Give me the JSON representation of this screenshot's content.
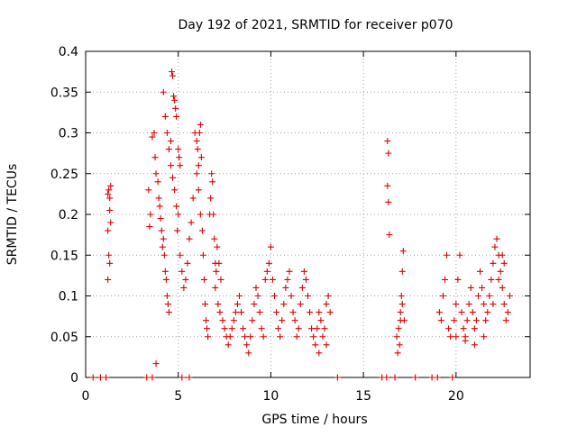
{
  "chart_data": {
    "type": "scatter",
    "title": "Day 192 of 2021, SRMTID for receiver p070",
    "xlabel": "GPS time / hours",
    "ylabel": "SRMTID / TECUs",
    "xlim": [
      0,
      24
    ],
    "ylim": [
      0,
      0.4
    ],
    "xticks": [
      0,
      5,
      10,
      15,
      20
    ],
    "xtick_labels": [
      "0",
      "5",
      "10",
      "15",
      "20"
    ],
    "yticks": [
      0,
      0.05,
      0.1,
      0.15,
      0.2,
      0.25,
      0.3,
      0.35,
      0.4
    ],
    "ytick_labels": [
      "0",
      "0.05",
      "0.1",
      "0.15",
      "0.2",
      "0.25",
      "0.3",
      "0.35",
      "0.4"
    ],
    "grid": true,
    "marker": "+",
    "color": "#dd0000",
    "series": [
      {
        "name": "SRMTID",
        "points": [
          [
            0.4,
            0
          ],
          [
            0.8,
            0
          ],
          [
            1.1,
            0
          ],
          [
            1.2,
            0.225
          ],
          [
            1.25,
            0.23
          ],
          [
            1.3,
            0.22
          ],
          [
            1.35,
            0.235
          ],
          [
            1.2,
            0.18
          ],
          [
            1.25,
            0.15
          ],
          [
            1.3,
            0.14
          ],
          [
            1.2,
            0.12
          ],
          [
            1.35,
            0.19
          ],
          [
            1.3,
            0.205
          ],
          [
            3.3,
            0
          ],
          [
            3.6,
            0
          ],
          [
            3.8,
            0.017
          ],
          [
            3.4,
            0.23
          ],
          [
            3.5,
            0.2
          ],
          [
            3.45,
            0.185
          ],
          [
            3.6,
            0.295
          ],
          [
            3.7,
            0.3
          ],
          [
            3.75,
            0.27
          ],
          [
            3.8,
            0.25
          ],
          [
            3.9,
            0.24
          ],
          [
            3.95,
            0.22
          ],
          [
            4.0,
            0.21
          ],
          [
            4.05,
            0.195
          ],
          [
            4.1,
            0.18
          ],
          [
            4.15,
            0.16
          ],
          [
            4.2,
            0.17
          ],
          [
            4.25,
            0.15
          ],
          [
            4.3,
            0.13
          ],
          [
            4.35,
            0.12
          ],
          [
            4.4,
            0.1
          ],
          [
            4.45,
            0.09
          ],
          [
            4.5,
            0.08
          ],
          [
            4.2,
            0.35
          ],
          [
            4.3,
            0.32
          ],
          [
            4.4,
            0.3
          ],
          [
            4.5,
            0.28
          ],
          [
            4.6,
            0.26
          ],
          [
            4.65,
            0.375
          ],
          [
            4.7,
            0.37
          ],
          [
            4.75,
            0.345
          ],
          [
            4.8,
            0.34
          ],
          [
            4.85,
            0.33
          ],
          [
            4.9,
            0.32
          ],
          [
            4.6,
            0.29
          ],
          [
            4.7,
            0.245
          ],
          [
            4.8,
            0.23
          ],
          [
            4.9,
            0.21
          ],
          [
            5.0,
            0.2
          ],
          [
            5.0,
            0.28
          ],
          [
            5.05,
            0.27
          ],
          [
            5.1,
            0.26
          ],
          [
            4.95,
            0.18
          ],
          [
            5.1,
            0.15
          ],
          [
            5.2,
            0.13
          ],
          [
            5.2,
            0
          ],
          [
            5.3,
            0.11
          ],
          [
            5.4,
            0.12
          ],
          [
            5.5,
            0.14
          ],
          [
            5.6,
            0.17
          ],
          [
            5.7,
            0.19
          ],
          [
            5.8,
            0.22
          ],
          [
            5.6,
            0
          ],
          [
            5.9,
            0.3
          ],
          [
            6.0,
            0.29
          ],
          [
            6.05,
            0.28
          ],
          [
            6.1,
            0.26
          ],
          [
            6.15,
            0.3
          ],
          [
            6.2,
            0.31
          ],
          [
            6.25,
            0.27
          ],
          [
            6.0,
            0.25
          ],
          [
            6.1,
            0.23
          ],
          [
            6.2,
            0.2
          ],
          [
            6.3,
            0.18
          ],
          [
            6.35,
            0.15
          ],
          [
            6.4,
            0.12
          ],
          [
            6.45,
            0.09
          ],
          [
            6.5,
            0.07
          ],
          [
            6.55,
            0.06
          ],
          [
            6.6,
            0.05
          ],
          [
            6.7,
            0.2
          ],
          [
            6.75,
            0.22
          ],
          [
            6.8,
            0.25
          ],
          [
            6.85,
            0.24
          ],
          [
            6.9,
            0.2
          ],
          [
            6.95,
            0.17
          ],
          [
            7.0,
            0.14
          ],
          [
            7.05,
            0.13
          ],
          [
            7.1,
            0.16
          ],
          [
            7.2,
            0.14
          ],
          [
            7.3,
            0.12
          ],
          [
            7.0,
            0.11
          ],
          [
            7.15,
            0.09
          ],
          [
            7.25,
            0.08
          ],
          [
            7.4,
            0.07
          ],
          [
            7.5,
            0.06
          ],
          [
            7.6,
            0.05
          ],
          [
            7.7,
            0.04
          ],
          [
            7.8,
            0.05
          ],
          [
            7.9,
            0.06
          ],
          [
            8.0,
            0.07
          ],
          [
            8.1,
            0.08
          ],
          [
            8.2,
            0.09
          ],
          [
            8.3,
            0.1
          ],
          [
            8.4,
            0.08
          ],
          [
            8.5,
            0.06
          ],
          [
            8.6,
            0.05
          ],
          [
            8.7,
            0.04
          ],
          [
            8.8,
            0.03
          ],
          [
            8.9,
            0.05
          ],
          [
            9.0,
            0.07
          ],
          [
            9.1,
            0.09
          ],
          [
            9.2,
            0.11
          ],
          [
            9.3,
            0.1
          ],
          [
            9.4,
            0.08
          ],
          [
            9.5,
            0.06
          ],
          [
            9.6,
            0.05
          ],
          [
            9.7,
            0.12
          ],
          [
            9.8,
            0.13
          ],
          [
            9.9,
            0.14
          ],
          [
            10.0,
            0.16
          ],
          [
            10.1,
            0.12
          ],
          [
            10.2,
            0.1
          ],
          [
            10.3,
            0.08
          ],
          [
            10.4,
            0.06
          ],
          [
            10.5,
            0.05
          ],
          [
            10.6,
            0.07
          ],
          [
            10.7,
            0.09
          ],
          [
            10.8,
            0.11
          ],
          [
            10.9,
            0.12
          ],
          [
            11.0,
            0.13
          ],
          [
            11.1,
            0.1
          ],
          [
            11.2,
            0.08
          ],
          [
            11.3,
            0.07
          ],
          [
            11.4,
            0.05
          ],
          [
            11.5,
            0.06
          ],
          [
            11.6,
            0.09
          ],
          [
            11.7,
            0.11
          ],
          [
            11.8,
            0.13
          ],
          [
            11.9,
            0.12
          ],
          [
            12.0,
            0.1
          ],
          [
            12.1,
            0.08
          ],
          [
            12.2,
            0.06
          ],
          [
            12.3,
            0.05
          ],
          [
            12.4,
            0.04
          ],
          [
            12.5,
            0.06
          ],
          [
            12.6,
            0.08
          ],
          [
            12.7,
            0.07
          ],
          [
            12.8,
            0.05
          ],
          [
            12.9,
            0.06
          ],
          [
            13.0,
            0.09
          ],
          [
            13.1,
            0.1
          ],
          [
            13.2,
            0.08
          ],
          [
            13.0,
            0.04
          ],
          [
            12.6,
            0.03
          ],
          [
            13.6,
            0
          ],
          [
            16.0,
            0
          ],
          [
            16.25,
            0
          ],
          [
            16.3,
            0.29
          ],
          [
            16.35,
            0.275
          ],
          [
            16.3,
            0.235
          ],
          [
            16.35,
            0.215
          ],
          [
            16.4,
            0.175
          ],
          [
            16.7,
            0
          ],
          [
            16.8,
            0.05
          ],
          [
            16.9,
            0.06
          ],
          [
            17.0,
            0.07
          ],
          [
            17.05,
            0.1
          ],
          [
            17.1,
            0.13
          ],
          [
            17.15,
            0.155
          ],
          [
            16.85,
            0.03
          ],
          [
            16.95,
            0.04
          ],
          [
            17.0,
            0.08
          ],
          [
            17.1,
            0.09
          ],
          [
            17.2,
            0.07
          ],
          [
            17.8,
            0
          ],
          [
            18.7,
            0
          ],
          [
            19.0,
            0
          ],
          [
            19.1,
            0.08
          ],
          [
            19.2,
            0.07
          ],
          [
            19.3,
            0.1
          ],
          [
            19.4,
            0.12
          ],
          [
            19.5,
            0.15
          ],
          [
            19.6,
            0.06
          ],
          [
            19.7,
            0.05
          ],
          [
            19.8,
            0
          ],
          [
            19.9,
            0.07
          ],
          [
            20.0,
            0.09
          ],
          [
            20.1,
            0.12
          ],
          [
            20.2,
            0.15
          ],
          [
            20.3,
            0.08
          ],
          [
            20.4,
            0.06
          ],
          [
            20.5,
            0.05
          ],
          [
            20.6,
            0.07
          ],
          [
            20.7,
            0.09
          ],
          [
            20.8,
            0.11
          ],
          [
            20.9,
            0.08
          ],
          [
            21.0,
            0.06
          ],
          [
            21.1,
            0.07
          ],
          [
            21.2,
            0.1
          ],
          [
            21.3,
            0.13
          ],
          [
            21.4,
            0.11
          ],
          [
            21.5,
            0.09
          ],
          [
            21.6,
            0.07
          ],
          [
            21.7,
            0.08
          ],
          [
            21.8,
            0.1
          ],
          [
            21.9,
            0.12
          ],
          [
            22.0,
            0.14
          ],
          [
            22.1,
            0.16
          ],
          [
            22.2,
            0.17
          ],
          [
            22.3,
            0.15
          ],
          [
            22.4,
            0.13
          ],
          [
            22.5,
            0.11
          ],
          [
            22.6,
            0.09
          ],
          [
            22.7,
            0.07
          ],
          [
            22.8,
            0.08
          ],
          [
            22.9,
            0.1
          ],
          [
            22.5,
            0.15
          ],
          [
            22.6,
            0.14
          ],
          [
            22.3,
            0.12
          ],
          [
            22.0,
            0.09
          ],
          [
            21.5,
            0.05
          ],
          [
            21.0,
            0.04
          ],
          [
            20.5,
            0.045
          ],
          [
            20.0,
            0.05
          ]
        ]
      }
    ]
  }
}
